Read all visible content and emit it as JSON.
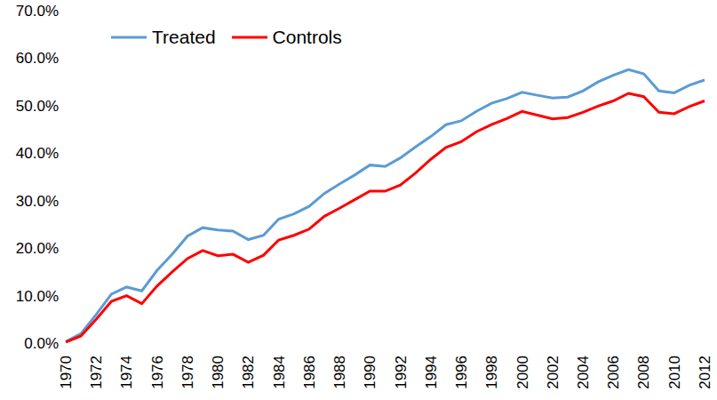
{
  "chart_data": {
    "type": "line",
    "categories": [
      "1970",
      null,
      "1972",
      null,
      "1974",
      null,
      "1976",
      null,
      "1978",
      null,
      "1980",
      null,
      "1982",
      null,
      "1984",
      null,
      "1986",
      null,
      "1988",
      null,
      "1990",
      null,
      "1992",
      null,
      "1994",
      null,
      "1996",
      null,
      "1998",
      null,
      "2000",
      null,
      "2002",
      null,
      "2004",
      null,
      "2006",
      null,
      "2008",
      null,
      "2010",
      null,
      "2012"
    ],
    "series": [
      {
        "name": "Treated",
        "color": "#5b9bd5",
        "values": [
          0.3,
          2.0,
          6.0,
          10.3,
          11.8,
          11.0,
          15.3,
          18.7,
          22.5,
          24.3,
          23.8,
          23.6,
          21.8,
          22.7,
          26.1,
          27.2,
          28.8,
          31.5,
          33.5,
          35.4,
          37.5,
          37.2,
          39.0,
          41.3,
          43.5,
          46.0,
          46.8,
          48.8,
          50.5,
          51.5,
          52.8,
          52.2,
          51.6,
          51.8,
          53.1,
          55.0,
          56.4,
          57.6,
          56.7,
          53.1,
          52.7,
          54.3,
          55.4
        ]
      },
      {
        "name": "Controls",
        "color": "#ff0000",
        "values": [
          0.2,
          1.5,
          5.0,
          8.8,
          10.0,
          8.3,
          12.0,
          15.0,
          17.8,
          19.5,
          18.4,
          18.7,
          17.0,
          18.5,
          21.7,
          22.7,
          24.0,
          26.7,
          28.4,
          30.2,
          32.0,
          32.0,
          33.3,
          35.8,
          38.7,
          41.2,
          42.4,
          44.5,
          46.0,
          47.3,
          48.8,
          48.0,
          47.2,
          47.5,
          48.6,
          49.9,
          51.0,
          52.6,
          51.9,
          48.6,
          48.3,
          49.8,
          51.0
        ]
      }
    ],
    "ylim": [
      0,
      70
    ],
    "yticks": [
      {
        "value": 0,
        "label": "0.0%"
      },
      {
        "value": 10,
        "label": "10.0%"
      },
      {
        "value": 20,
        "label": "20.0%"
      },
      {
        "value": 30,
        "label": "30.0%"
      },
      {
        "value": 40,
        "label": "40.0%"
      },
      {
        "value": 50,
        "label": "50.0%"
      },
      {
        "value": 60,
        "label": "60.0%"
      },
      {
        "value": 70,
        "label": "70.0%"
      }
    ],
    "legend": "upper left",
    "grid": false
  }
}
